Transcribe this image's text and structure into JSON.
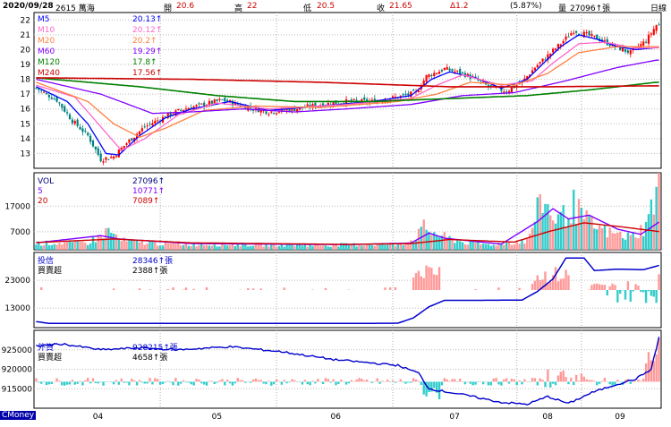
{
  "header": {
    "date": "2020/09/28",
    "stock": "2615 萬海",
    "open_label": "開",
    "open": "20.6",
    "high_label": "高",
    "high": "22",
    "low_label": "低",
    "low": "20.5",
    "close_label": "收",
    "close": "21.65",
    "change": "Δ1.2",
    "pct": "(5.87%)",
    "vol_label": "量",
    "vol": "27096↑張",
    "period": "日線"
  },
  "colors": {
    "up": "#ff0000",
    "down": "#008080",
    "ma5": "#0000ff",
    "ma10": "#ff66cc",
    "ma20": "#ff8040",
    "ma60": "#8000ff",
    "ma120": "#008000",
    "ma240": "#cc0000",
    "bar_up": "#ff9999",
    "bar_down": "#33cccc",
    "line_blue": "#0000cc"
  },
  "legend_price": [
    {
      "name": "M5",
      "value": "20.13↑",
      "color": "#0000ff"
    },
    {
      "name": "M10",
      "value": "20.12↑",
      "color": "#ff66cc"
    },
    {
      "name": "M20",
      "value": "20.2↑",
      "color": "#ff8040"
    },
    {
      "name": "M60",
      "value": "19.29↑",
      "color": "#8000ff"
    },
    {
      "name": "M120",
      "value": "17.8↑",
      "color": "#008000"
    },
    {
      "name": "M240",
      "value": "17.56↑",
      "color": "#cc0000"
    }
  ],
  "legend_vol": [
    {
      "name": "VOL",
      "value": "27096↑",
      "color": "#000080"
    },
    {
      "name": "5",
      "value": "10771↑",
      "color": "#8000ff"
    },
    {
      "name": "20",
      "value": "7089↑",
      "color": "#cc0000"
    }
  ],
  "legend_trust": [
    {
      "name": "投信",
      "value": "28346↑張",
      "color": "#0000cc"
    },
    {
      "name": "買賣超",
      "value": "2388↑張",
      "color": "#000000"
    }
  ],
  "legend_foreign": [
    {
      "name": "外資",
      "value": "928215↑張",
      "color": "#0000cc"
    },
    {
      "name": "買賣超",
      "value": "4658↑張",
      "color": "#000000"
    }
  ],
  "months": [
    "04",
    "05",
    "06",
    "07",
    "08",
    "09"
  ],
  "brand": "CMoney",
  "chart_data": [
    {
      "type": "candlestick",
      "panel": "price",
      "ylim": [
        12,
        22.5
      ],
      "yticks": [
        13,
        14,
        15,
        16,
        17,
        18,
        19,
        20,
        21,
        22
      ],
      "close_anchors": [
        [
          0,
          17.4
        ],
        [
          8,
          16.6
        ],
        [
          14,
          15.2
        ],
        [
          20,
          14.2
        ],
        [
          25,
          12.6
        ],
        [
          30,
          12.8
        ],
        [
          35,
          13.7
        ],
        [
          42,
          14.8
        ],
        [
          50,
          15.5
        ],
        [
          57,
          16.0
        ],
        [
          65,
          16.3
        ],
        [
          72,
          16.6
        ],
        [
          80,
          16.2
        ],
        [
          90,
          15.8
        ],
        [
          100,
          16.0
        ],
        [
          110,
          16.3
        ],
        [
          120,
          16.5
        ],
        [
          130,
          16.5
        ],
        [
          140,
          16.8
        ],
        [
          147,
          17.1
        ],
        [
          151,
          18.2
        ],
        [
          158,
          18.7
        ],
        [
          165,
          18.4
        ],
        [
          170,
          18.0
        ],
        [
          175,
          17.5
        ],
        [
          182,
          17.2
        ],
        [
          188,
          17.8
        ],
        [
          193,
          18.8
        ],
        [
          198,
          19.6
        ],
        [
          203,
          20.4
        ],
        [
          208,
          21.3
        ],
        [
          213,
          21.0
        ],
        [
          218,
          20.7
        ],
        [
          224,
          20.2
        ],
        [
          230,
          19.8
        ],
        [
          236,
          20.6
        ],
        [
          240,
          21.65
        ]
      ],
      "ma_anchors": {
        "M5": [
          [
            0,
            17.5
          ],
          [
            12,
            16.5
          ],
          [
            20,
            15.0
          ],
          [
            27,
            13.0
          ],
          [
            32,
            12.9
          ],
          [
            40,
            14.2
          ],
          [
            50,
            15.4
          ],
          [
            60,
            16.0
          ],
          [
            75,
            16.5
          ],
          [
            90,
            15.9
          ],
          [
            110,
            16.2
          ],
          [
            130,
            16.5
          ],
          [
            145,
            16.9
          ],
          [
            153,
            18.0
          ],
          [
            160,
            18.5
          ],
          [
            170,
            18.1
          ],
          [
            180,
            17.4
          ],
          [
            190,
            18.0
          ],
          [
            197,
            19.2
          ],
          [
            203,
            20.2
          ],
          [
            210,
            21.0
          ],
          [
            217,
            20.7
          ],
          [
            225,
            20.2
          ],
          [
            232,
            20.0
          ],
          [
            240,
            20.13
          ]
        ],
        "M10": [
          [
            0,
            17.6
          ],
          [
            15,
            16.8
          ],
          [
            25,
            14.8
          ],
          [
            33,
            13.2
          ],
          [
            42,
            14.0
          ],
          [
            55,
            15.6
          ],
          [
            70,
            16.4
          ],
          [
            90,
            16.0
          ],
          [
            120,
            16.3
          ],
          [
            145,
            16.7
          ],
          [
            155,
            17.6
          ],
          [
            165,
            18.3
          ],
          [
            180,
            17.6
          ],
          [
            192,
            17.9
          ],
          [
            200,
            19.1
          ],
          [
            210,
            20.4
          ],
          [
            220,
            20.5
          ],
          [
            232,
            20.1
          ],
          [
            240,
            20.12
          ]
        ],
        "M20": [
          [
            0,
            17.8
          ],
          [
            20,
            16.5
          ],
          [
            30,
            15.0
          ],
          [
            40,
            14.1
          ],
          [
            50,
            14.7
          ],
          [
            65,
            15.9
          ],
          [
            85,
            16.2
          ],
          [
            110,
            16.1
          ],
          [
            140,
            16.5
          ],
          [
            155,
            17.0
          ],
          [
            168,
            17.8
          ],
          [
            185,
            17.6
          ],
          [
            198,
            18.4
          ],
          [
            210,
            19.8
          ],
          [
            225,
            20.2
          ],
          [
            240,
            20.2
          ]
        ],
        "M60": [
          [
            0,
            18.0
          ],
          [
            25,
            17.0
          ],
          [
            45,
            15.7
          ],
          [
            60,
            15.8
          ],
          [
            80,
            16.0
          ],
          [
            100,
            15.8
          ],
          [
            120,
            16.0
          ],
          [
            145,
            16.3
          ],
          [
            165,
            16.9
          ],
          [
            185,
            17.1
          ],
          [
            205,
            17.9
          ],
          [
            225,
            18.8
          ],
          [
            240,
            19.29
          ]
        ],
        "M120": [
          [
            0,
            18.1
          ],
          [
            40,
            17.5
          ],
          [
            70,
            16.9
          ],
          [
            100,
            16.5
          ],
          [
            130,
            16.5
          ],
          [
            160,
            16.7
          ],
          [
            190,
            16.9
          ],
          [
            215,
            17.3
          ],
          [
            240,
            17.8
          ]
        ],
        "M240": [
          [
            0,
            18.1
          ],
          [
            60,
            18.0
          ],
          [
            110,
            17.8
          ],
          [
            160,
            17.5
          ],
          [
            200,
            17.5
          ],
          [
            240,
            17.56
          ]
        ]
      },
      "n_days": 242
    },
    {
      "type": "bar",
      "panel": "volume",
      "ylim": [
        0,
        30000
      ],
      "yticks": [
        7000,
        17000
      ],
      "vol_anchors": [
        [
          0,
          2500
        ],
        [
          20,
          2800
        ],
        [
          24,
          4800
        ],
        [
          28,
          7500
        ],
        [
          33,
          3500
        ],
        [
          50,
          2300
        ],
        [
          80,
          2000
        ],
        [
          110,
          1800
        ],
        [
          140,
          2200
        ],
        [
          146,
          3800
        ],
        [
          150,
          8500
        ],
        [
          156,
          5500
        ],
        [
          165,
          3000
        ],
        [
          175,
          2000
        ],
        [
          190,
          3500
        ],
        [
          193,
          12000
        ],
        [
          196,
          20000
        ],
        [
          199,
          14000
        ],
        [
          203,
          12000
        ],
        [
          208,
          17000
        ],
        [
          212,
          12000
        ],
        [
          216,
          9000
        ],
        [
          222,
          6500
        ],
        [
          230,
          5000
        ],
        [
          236,
          9000
        ],
        [
          238,
          16000
        ],
        [
          241,
          27096
        ]
      ],
      "ma5_anchors": [
        [
          0,
          2700
        ],
        [
          25,
          5500
        ],
        [
          32,
          4200
        ],
        [
          60,
          2400
        ],
        [
          120,
          2000
        ],
        [
          145,
          2600
        ],
        [
          152,
          6500
        ],
        [
          158,
          4500
        ],
        [
          180,
          2200
        ],
        [
          194,
          11000
        ],
        [
          200,
          16000
        ],
        [
          206,
          12000
        ],
        [
          214,
          13500
        ],
        [
          225,
          8000
        ],
        [
          234,
          6000
        ],
        [
          241,
          10771
        ]
      ],
      "ma20_anchors": [
        [
          0,
          2800
        ],
        [
          30,
          4200
        ],
        [
          60,
          2700
        ],
        [
          120,
          2100
        ],
        [
          145,
          2400
        ],
        [
          160,
          4000
        ],
        [
          185,
          3000
        ],
        [
          198,
          7000
        ],
        [
          212,
          10500
        ],
        [
          226,
          9000
        ],
        [
          241,
          7089
        ]
      ]
    },
    {
      "type": "bar_line",
      "panel": "trust",
      "ylim": [
        6000,
        33000
      ],
      "yticks": [
        13000,
        23000
      ],
      "hold_anchors": [
        [
          0,
          8200
        ],
        [
          5,
          7500
        ],
        [
          80,
          7500
        ],
        [
          120,
          7500
        ],
        [
          140,
          7600
        ],
        [
          146,
          9500
        ],
        [
          152,
          13500
        ],
        [
          158,
          15800
        ],
        [
          170,
          15800
        ],
        [
          188,
          15900
        ],
        [
          194,
          19000
        ],
        [
          200,
          23500
        ],
        [
          205,
          31000
        ],
        [
          212,
          31000
        ],
        [
          216,
          26500
        ],
        [
          225,
          27000
        ],
        [
          235,
          26800
        ],
        [
          241,
          28346
        ]
      ]
    },
    {
      "type": "bar_line",
      "panel": "foreign",
      "ylim": [
        910000,
        930000
      ],
      "yticks": [
        915000,
        920000,
        925000
      ],
      "hold_anchors": [
        [
          0,
          926000
        ],
        [
          10,
          926500
        ],
        [
          25,
          925000
        ],
        [
          40,
          925500
        ],
        [
          55,
          925000
        ],
        [
          75,
          925800
        ],
        [
          95,
          924500
        ],
        [
          115,
          922500
        ],
        [
          140,
          921000
        ],
        [
          148,
          919000
        ],
        [
          152,
          915000
        ],
        [
          165,
          913500
        ],
        [
          180,
          911500
        ],
        [
          190,
          911000
        ],
        [
          198,
          913000
        ],
        [
          206,
          911200
        ],
        [
          215,
          914000
        ],
        [
          224,
          916000
        ],
        [
          232,
          917500
        ],
        [
          238,
          920000
        ],
        [
          241,
          928215
        ]
      ]
    }
  ]
}
